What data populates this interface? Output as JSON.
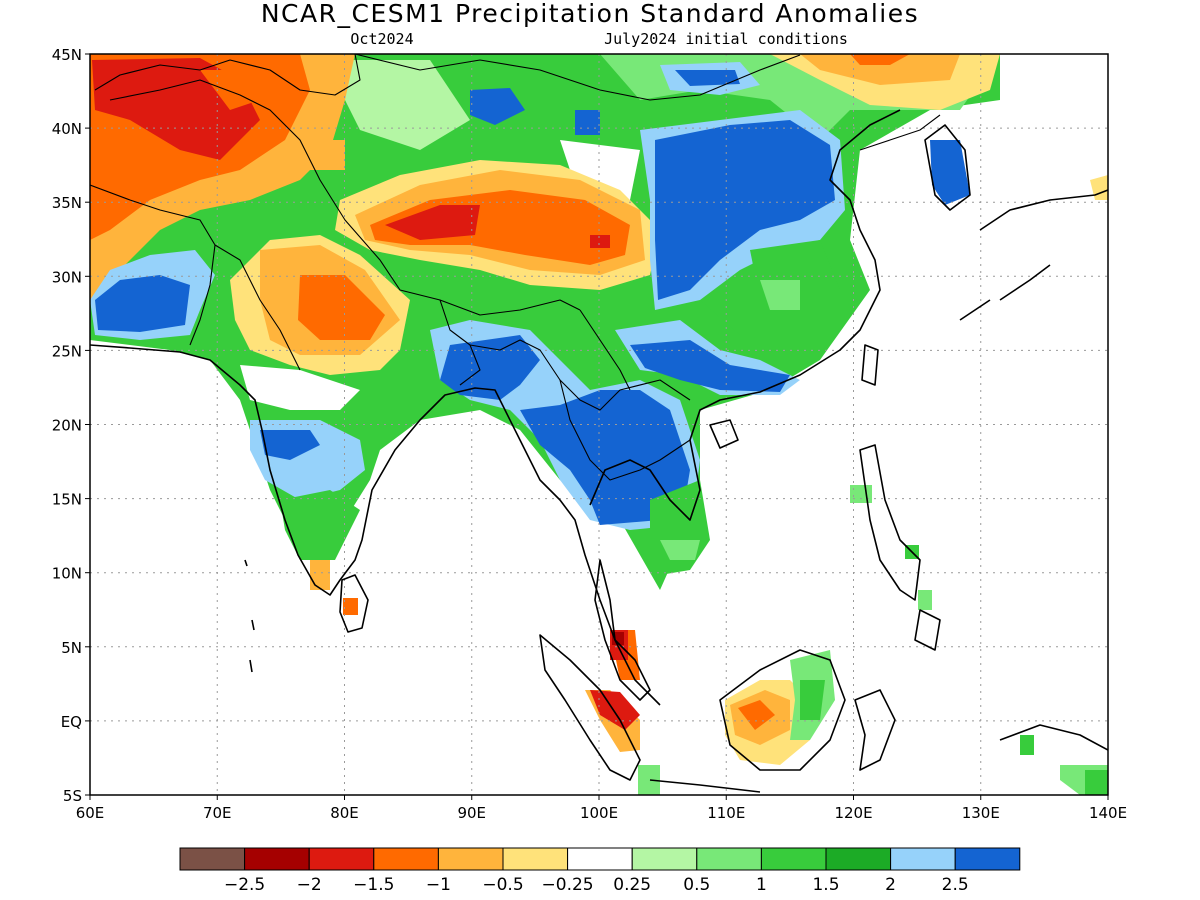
{
  "header": {
    "title": "NCAR_CESM1 Precipitation Standard Anomalies",
    "valid_month": "Oct2024",
    "init_conditions": "July2024 initial conditions"
  },
  "map": {
    "region": "South and East Asia",
    "lon_range": [
      60,
      140
    ],
    "lat_range": [
      -5,
      45
    ],
    "x_tick_labels": [
      "60E",
      "70E",
      "80E",
      "90E",
      "100E",
      "110E",
      "120E",
      "130E",
      "140E"
    ],
    "y_tick_labels": [
      "5S",
      "EQ",
      "5N",
      "10N",
      "15N",
      "20N",
      "25N",
      "30N",
      "35N",
      "40N",
      "45N"
    ],
    "grid": "dotted",
    "anomaly_regions": [
      {
        "area": "Iran/Afghanistan/Central Asia",
        "class": -1.5
      },
      {
        "area": "Tibetan Plateau",
        "class": -1.5
      },
      {
        "area": "Rajasthan/NW India",
        "class": -1
      },
      {
        "area": "Southern Iran/Pakistan coast",
        "class": 2.5
      },
      {
        "area": "Bangladesh/Myanmar",
        "class": 2.5
      },
      {
        "area": "Indochina",
        "class": 2.5
      },
      {
        "area": "East/Central China",
        "class": 2.5
      },
      {
        "area": "Mongolia",
        "class": 2.5
      },
      {
        "area": "Korean Peninsula",
        "class": 2.5
      },
      {
        "area": "Malay Peninsula",
        "class": -1.5
      },
      {
        "area": "Sumatra",
        "class": -1.5
      },
      {
        "area": "Borneo",
        "class": -0.5
      }
    ]
  },
  "colorbar": {
    "colors": [
      "#7b5146",
      "#a50000",
      "#dd1a10",
      "#ff6a00",
      "#ffb43c",
      "#ffe27a",
      "#ffffff",
      "#b4f6a4",
      "#78e878",
      "#38cc3c",
      "#1cab26",
      "#96d2fa",
      "#1464d2"
    ],
    "labels": [
      "-2.5",
      "-2",
      "-1.5",
      "-1",
      "-0.5",
      "-0.25",
      "0.25",
      "0.5",
      "1",
      "1.5",
      "2",
      "2.5"
    ]
  }
}
